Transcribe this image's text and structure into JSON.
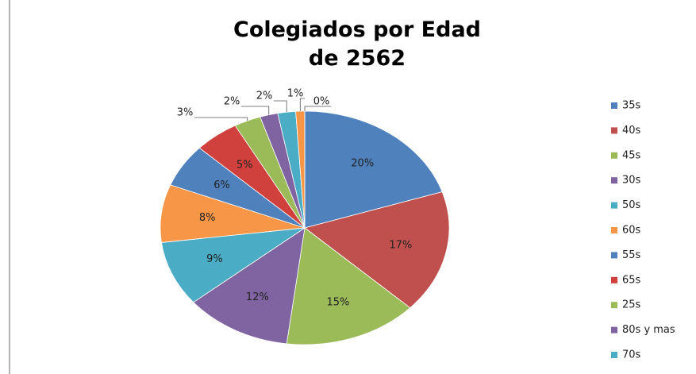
{
  "chart_data": {
    "type": "pie",
    "title": "Colegiados por Edad de 2562",
    "categories": [
      "35s",
      "40s",
      "45s",
      "30s",
      "50s",
      "60s",
      "55s",
      "65s",
      "25s",
      "80s y mas",
      "70s",
      null,
      null
    ],
    "values": [
      20,
      17,
      15,
      12,
      9,
      8,
      6,
      5,
      3,
      2,
      2,
      1,
      0
    ],
    "value_labels": [
      "20%",
      "17%",
      "15%",
      "12%",
      "9%",
      "8%",
      "6%",
      "5%",
      "3%",
      "2%",
      "2%",
      "1%",
      "0%"
    ],
    "colors": [
      "#4f81bd",
      "#c0504d",
      "#9bbb59",
      "#8064a2",
      "#4bacc6",
      "#f79646",
      "#4f81bd",
      "#d0413d",
      "#9bbb59",
      "#8064a2",
      "#4bacc6",
      "#f79646",
      "#4f81bd"
    ],
    "legend": "right"
  }
}
